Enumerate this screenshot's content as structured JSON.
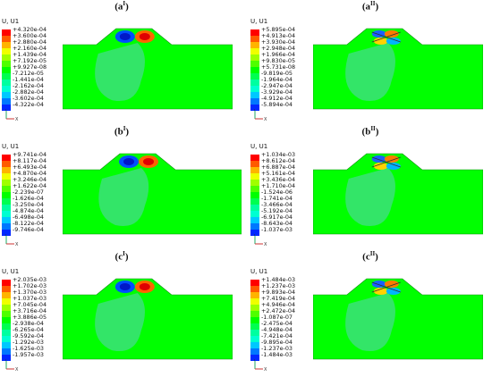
{
  "legend_colors": [
    "#ff0000",
    "#ff5a00",
    "#ffb400",
    "#f0ff00",
    "#a0ff00",
    "#50ff00",
    "#00ff00",
    "#00ff50",
    "#00ffa0",
    "#00ffd2",
    "#00c8ff",
    "#0078ff",
    "#0028ff"
  ],
  "mesh_colors": {
    "body": "#00ff00",
    "plume": "#3ce07a",
    "outline": "#0a8a0a"
  },
  "panels": [
    {
      "id": "a1",
      "label": "a",
      "sup": "I",
      "legend_title": "U, U1",
      "ticks": [
        "+4.320e-04",
        "+3.600e-04",
        "+2.880e-04",
        "+2.160e-04",
        "+1.439e-04",
        "+7.192e-05",
        "+9.927e-08",
        "-7.212e-05",
        "-1.441e-04",
        "-2.162e-04",
        "-2.882e-04",
        "-3.602e-04",
        "-4.322e-04"
      ]
    },
    {
      "id": "a2",
      "label": "a",
      "sup": "II",
      "legend_title": "U, U1",
      "ticks": [
        "+5.895e-04",
        "+4.913e-04",
        "+3.930e-04",
        "+2.948e-04",
        "+1.966e-04",
        "+9.830e-05",
        "+5.731e-08",
        "-9.819e-05",
        "-1.964e-04",
        "-2.947e-04",
        "-3.929e-04",
        "-4.912e-04",
        "-5.894e-04"
      ]
    },
    {
      "id": "b1",
      "label": "b",
      "sup": "I",
      "legend_title": "U, U1",
      "ticks": [
        "+9.741e-04",
        "+8.117e-04",
        "+6.493e-04",
        "+4.870e-04",
        "+3.246e-04",
        "+1.622e-04",
        "-2.239e-07",
        "-1.626e-04",
        "-3.250e-04",
        "-4.874e-04",
        "-6.498e-04",
        "-8.122e-04",
        "-9.746e-04"
      ]
    },
    {
      "id": "b2",
      "label": "b",
      "sup": "II",
      "legend_title": "U, U1",
      "ticks": [
        "+1.034e-03",
        "+8.612e-04",
        "+6.887e-04",
        "+5.161e-04",
        "+3.436e-04",
        "+1.710e-04",
        "-1.524e-06",
        "-1.741e-04",
        "-3.466e-04",
        "-5.192e-04",
        "-6.917e-04",
        "-8.643e-04",
        "-1.037e-03"
      ]
    },
    {
      "id": "c1",
      "label": "c",
      "sup": "I",
      "legend_title": "U, U1",
      "ticks": [
        "+2.035e-03",
        "+1.702e-03",
        "+1.370e-03",
        "+1.037e-03",
        "+7.045e-04",
        "+3.716e-04",
        "+3.886e-05",
        "-2.938e-04",
        "-6.265e-04",
        "-9.592e-04",
        "-1.292e-03",
        "-1.625e-03",
        "-1.957e-03"
      ]
    },
    {
      "id": "c2",
      "label": "c",
      "sup": "II",
      "legend_title": "U, U1",
      "ticks": [
        "+1.484e-03",
        "+1.237e-03",
        "+9.893e-04",
        "+7.419e-04",
        "+4.946e-04",
        "+2.472e-04",
        "-1.087e-07",
        "-2.475e-04",
        "-4.948e-04",
        "-7.421e-04",
        "-9.895e-04",
        "-1.237e-03",
        "-1.484e-03"
      ]
    }
  ]
}
